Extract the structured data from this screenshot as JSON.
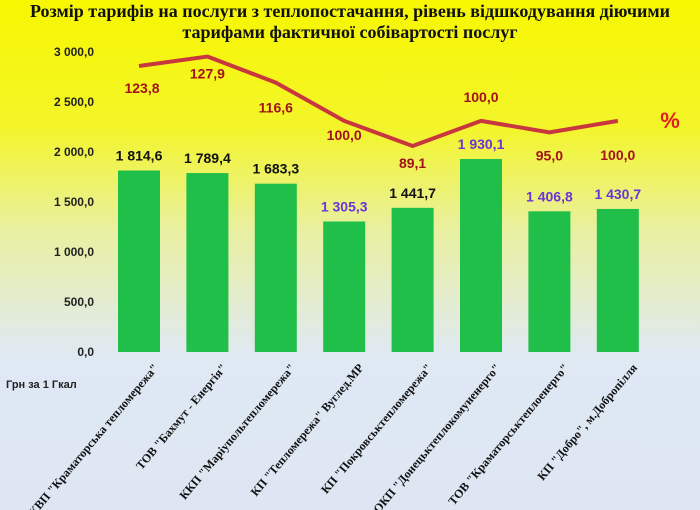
{
  "chart_data": {
    "type": "bar",
    "title_line1": "Розмір тарифів на послуги з теплопостачання, рівень відшкодування діючими",
    "title_line2": "тарифами фактичної собівартості послуг",
    "ylabel": "Грн за 1 Гкал",
    "ylim": [
      0,
      3000
    ],
    "yticks": [
      "0,0",
      "500,0",
      "1 000,0",
      "1 500,0",
      "2 000,0",
      "2 500,0",
      "3 000,0"
    ],
    "ytick_values": [
      0,
      500,
      1000,
      1500,
      2000,
      2500,
      3000
    ],
    "percent_symbol": "%",
    "categories": [
      "КВП \"Краматорська тепломережа\"",
      "ТОВ \"Бахмут - Енергія\"",
      "ККП \"Маріупольтепломережа\"",
      "КП \"Тепломережа\" Вуглед.МР",
      "КП \"Покровськтепломережа\"",
      "ОКП \"Донецьктеплокомуненерго\"",
      "ТОВ \"Краматорськтеплоенерго\"",
      "КП \"Добро\", м.Добропілля"
    ],
    "series": [
      {
        "name": "Тариф, грн за 1 Гкал",
        "type": "bar",
        "color": "#1fbf4a",
        "values": [
          1814.6,
          1789.4,
          1683.3,
          1305.3,
          1441.7,
          1930.1,
          1406.8,
          1430.7
        ],
        "labels": [
          "1 814,6",
          "1 789,4",
          "1 683,3",
          "1 305,3",
          "1 441,7",
          "1 930,1",
          "1 406,8",
          "1 430,7"
        ],
        "label_colors": [
          "#111111",
          "#111111",
          "#111111",
          "#6a35d6",
          "#111111",
          "#6a35d6",
          "#6a35d6",
          "#6a35d6"
        ]
      },
      {
        "name": "Рівень відшкодування, %",
        "type": "line",
        "color": "#c8373d",
        "label_color": "#a3121c",
        "values": [
          123.8,
          127.9,
          116.6,
          100.0,
          89.1,
          100.0,
          95.0,
          100.0
        ],
        "labels": [
          "123,8",
          "127,9",
          "116,6",
          "100,0",
          "89,1",
          "100,0",
          "95,0",
          "100,0"
        ]
      }
    ]
  }
}
